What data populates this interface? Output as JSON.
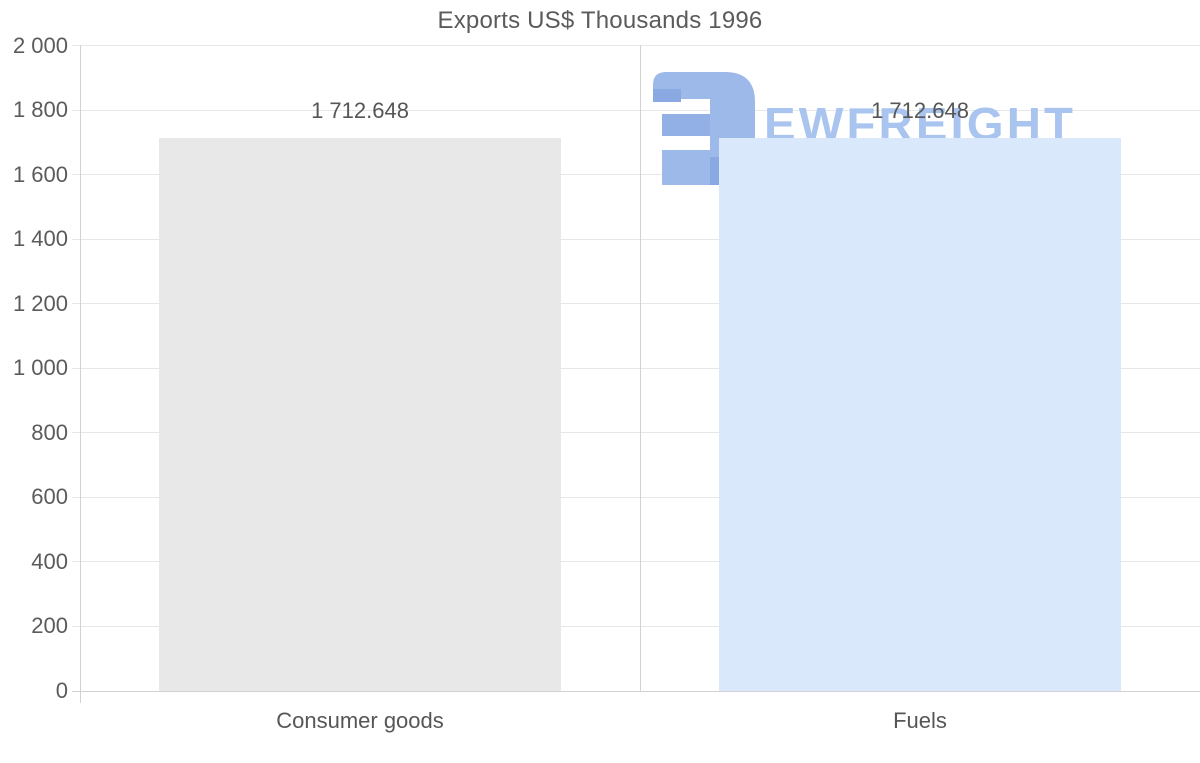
{
  "chart_data": {
    "type": "bar",
    "title": "Exports US$ Thousands 1996",
    "categories": [
      "Consumer goods",
      "Fuels"
    ],
    "values": [
      1712.648,
      1712.648
    ],
    "value_labels": [
      "1 712.648",
      "1 712.648"
    ],
    "xlabel": "",
    "ylabel": "",
    "ylim": [
      0,
      2000
    ],
    "ytick_step": 200,
    "ytick_labels": [
      "0",
      "200",
      "400",
      "600",
      "800",
      "1 000",
      "1 200",
      "1 400",
      "1 600",
      "1 800",
      "2 000"
    ],
    "grid": "horizontal-on",
    "legend_position": "none",
    "bar_colors": [
      "#e8e8e8",
      "#d9e8fa"
    ]
  },
  "watermark": {
    "text": "EWFREIGHT",
    "logo_icon": "ewfreight-logo",
    "text_color": "#a8c4ef",
    "logo_color": "#9db9ea",
    "logo_accent_color": "#8aa9e3"
  },
  "colors": {
    "text": "#5b5b5b",
    "grid": "#e7e7e7",
    "axis": "#d2d2d2",
    "background": "#ffffff"
  }
}
